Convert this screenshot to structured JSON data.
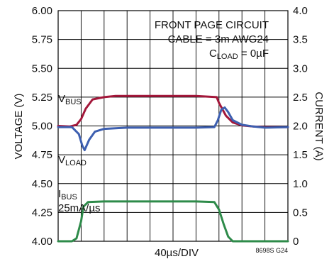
{
  "chart_data": {
    "type": "line",
    "xlabel": "40µs/DIV",
    "figure_id": "8698S G24",
    "y_left": {
      "label": "VOLTAGE (V)",
      "range": [
        4.0,
        6.0
      ],
      "ticks": [
        "4.00",
        "4.25",
        "4.50",
        "4.75",
        "5.00",
        "5.25",
        "5.50",
        "5.75",
        "6.00"
      ]
    },
    "y_right": {
      "label": "CURRENT (A)",
      "range": [
        0,
        4.0
      ],
      "ticks": [
        "0",
        "0.5",
        "1.0",
        "1.5",
        "2.0",
        "2.5",
        "3.0",
        "3.5",
        "4.0"
      ]
    },
    "x_divisions": 10,
    "grid": true,
    "annotations": {
      "line1": "FRONT PAGE CIRCUIT",
      "line2": "CABLE = 3m AWG24",
      "cload_main": "C",
      "cload_sub": "LOAD",
      "cload_tail": " = 0µF"
    },
    "labels": {
      "vbus_main": "V",
      "vbus_sub": "BUS",
      "vload_main": "V",
      "vload_sub": "LOAD",
      "ibus_main": "I",
      "ibus_sub": "BUS",
      "ibus_rate": "25mA/µs"
    },
    "series": [
      {
        "name": "VBUS",
        "axis": "left",
        "color": "#a3173a",
        "x": [
          0,
          0.5,
          0.8,
          1.0,
          1.2,
          1.5,
          2.0,
          2.5,
          3.0,
          4.0,
          5.0,
          6.0,
          6.9,
          7.0,
          7.3,
          7.6,
          8.0,
          8.5,
          9.0,
          10.0
        ],
        "y": [
          5.0,
          4.995,
          5.01,
          5.06,
          5.15,
          5.23,
          5.25,
          5.26,
          5.26,
          5.26,
          5.26,
          5.26,
          5.25,
          5.2,
          5.09,
          5.03,
          5.005,
          4.995,
          4.99,
          4.99
        ]
      },
      {
        "name": "VLOAD",
        "axis": "left",
        "color": "#3d5fb0",
        "x": [
          0,
          0.6,
          0.9,
          1.05,
          1.15,
          1.35,
          1.6,
          2.0,
          3.0,
          4.0,
          5.0,
          6.0,
          6.8,
          6.95,
          7.1,
          7.25,
          7.4,
          7.6,
          8.0,
          8.5,
          9.0,
          10.0
        ],
        "y": [
          4.99,
          4.99,
          4.93,
          4.83,
          4.79,
          4.88,
          4.95,
          4.975,
          4.985,
          4.985,
          4.985,
          4.985,
          4.99,
          5.05,
          5.14,
          5.16,
          5.12,
          5.05,
          5.01,
          4.995,
          4.985,
          4.99
        ]
      },
      {
        "name": "IBUS",
        "axis": "right",
        "color": "#2e8b4a",
        "x": [
          0,
          0.6,
          0.8,
          1.0,
          1.1,
          1.3,
          2.0,
          3.0,
          4.0,
          5.0,
          6.0,
          6.8,
          7.0,
          7.2,
          7.4,
          7.6,
          8.0,
          10.0
        ],
        "y": [
          0,
          0,
          0.05,
          0.35,
          0.6,
          0.68,
          0.69,
          0.69,
          0.69,
          0.69,
          0.69,
          0.68,
          0.55,
          0.3,
          0.08,
          0.0,
          0,
          0
        ]
      }
    ]
  }
}
